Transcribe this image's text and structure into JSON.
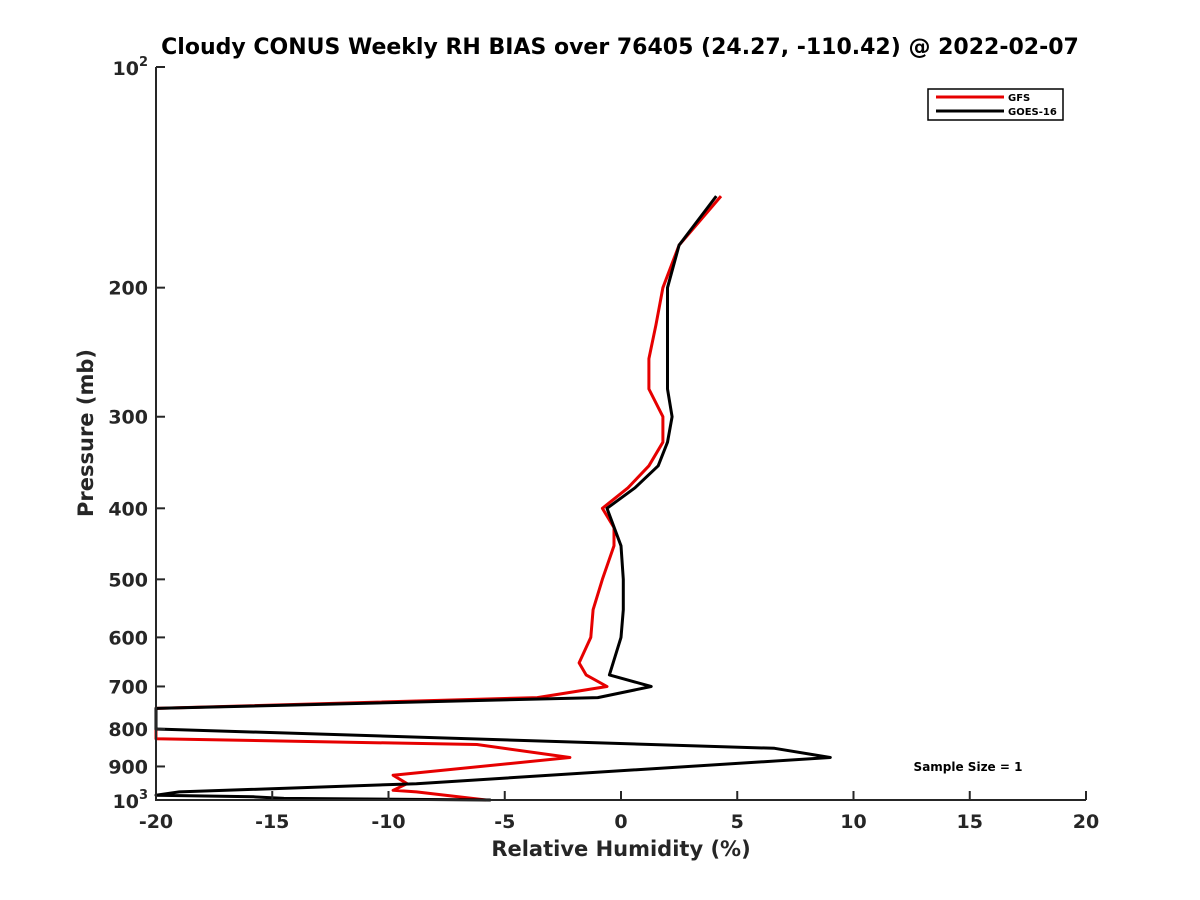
{
  "chart_data": {
    "type": "line",
    "title": "Cloudy CONUS Weekly RH BIAS over 76405 (24.27, -110.42) @ 2022-02-07",
    "xlabel": "Relative Humidity (%)",
    "ylabel": "Pressure (mb)",
    "xlim": [
      -20,
      20
    ],
    "ylim": [
      100,
      1000
    ],
    "y_scale": "log",
    "y_reversed": true,
    "grid": false,
    "legend_position": "top-right",
    "x_ticks": [
      -20,
      -15,
      -10,
      -5,
      0,
      5,
      10,
      15,
      20
    ],
    "x_tick_labels": [
      "-20",
      "-15",
      "-10",
      "-5",
      "0",
      "5",
      "10",
      "15",
      "20"
    ],
    "y_ticks": [
      200,
      300,
      400,
      500,
      600,
      700,
      800,
      900
    ],
    "y_tick_labels": [
      "200",
      "300",
      "400",
      "500",
      "600",
      "700",
      "800",
      "900"
    ],
    "y_decade_ticks": [
      {
        "value": 100,
        "base": "10",
        "exponent": "2"
      },
      {
        "value": 1000,
        "base": "10",
        "exponent": "3"
      }
    ],
    "series": [
      {
        "name": "GFS",
        "color": "#e60000",
        "points": [
          [
            4.3,
            150
          ],
          [
            2.5,
            175
          ],
          [
            1.8,
            200
          ],
          [
            1.5,
            225
          ],
          [
            1.2,
            250
          ],
          [
            1.2,
            275
          ],
          [
            1.8,
            300
          ],
          [
            1.8,
            325
          ],
          [
            1.2,
            350
          ],
          [
            0.3,
            375
          ],
          [
            -0.8,
            400
          ],
          [
            -0.3,
            425
          ],
          [
            -0.3,
            450
          ],
          [
            -0.8,
            500
          ],
          [
            -1.2,
            550
          ],
          [
            -1.3,
            600
          ],
          [
            -1.8,
            650
          ],
          [
            -1.5,
            675
          ],
          [
            -0.6,
            700
          ],
          [
            -3.6,
            725
          ],
          [
            -20,
            750
          ],
          [
            -20,
            825
          ],
          [
            -6.2,
            840
          ],
          [
            -2.2,
            875
          ],
          [
            -9.8,
            925
          ],
          [
            -9.2,
            950
          ],
          [
            -9.8,
            970
          ],
          [
            -8.8,
            975
          ],
          [
            -5.8,
            1000
          ]
        ]
      },
      {
        "name": "GOES-16",
        "color": "#000000",
        "points": [
          [
            4.1,
            150
          ],
          [
            2.5,
            175
          ],
          [
            2.0,
            200
          ],
          [
            2.0,
            225
          ],
          [
            2.0,
            250
          ],
          [
            2.0,
            275
          ],
          [
            2.2,
            300
          ],
          [
            2.0,
            325
          ],
          [
            1.6,
            350
          ],
          [
            0.6,
            375
          ],
          [
            -0.6,
            400
          ],
          [
            0.0,
            450
          ],
          [
            0.1,
            500
          ],
          [
            0.1,
            550
          ],
          [
            0.0,
            600
          ],
          [
            -0.5,
            675
          ],
          [
            1.3,
            700
          ],
          [
            -1.0,
            725
          ],
          [
            -20,
            750
          ],
          [
            -20,
            800
          ],
          [
            6.6,
            850
          ],
          [
            9.0,
            875
          ],
          [
            -8.8,
            950
          ],
          [
            -19.0,
            975
          ],
          [
            -20,
            985
          ],
          [
            -15.8,
            990
          ],
          [
            -14.5,
            995
          ],
          [
            -5.6,
            1000
          ]
        ]
      }
    ],
    "annotation": "Sample Size = 1"
  }
}
